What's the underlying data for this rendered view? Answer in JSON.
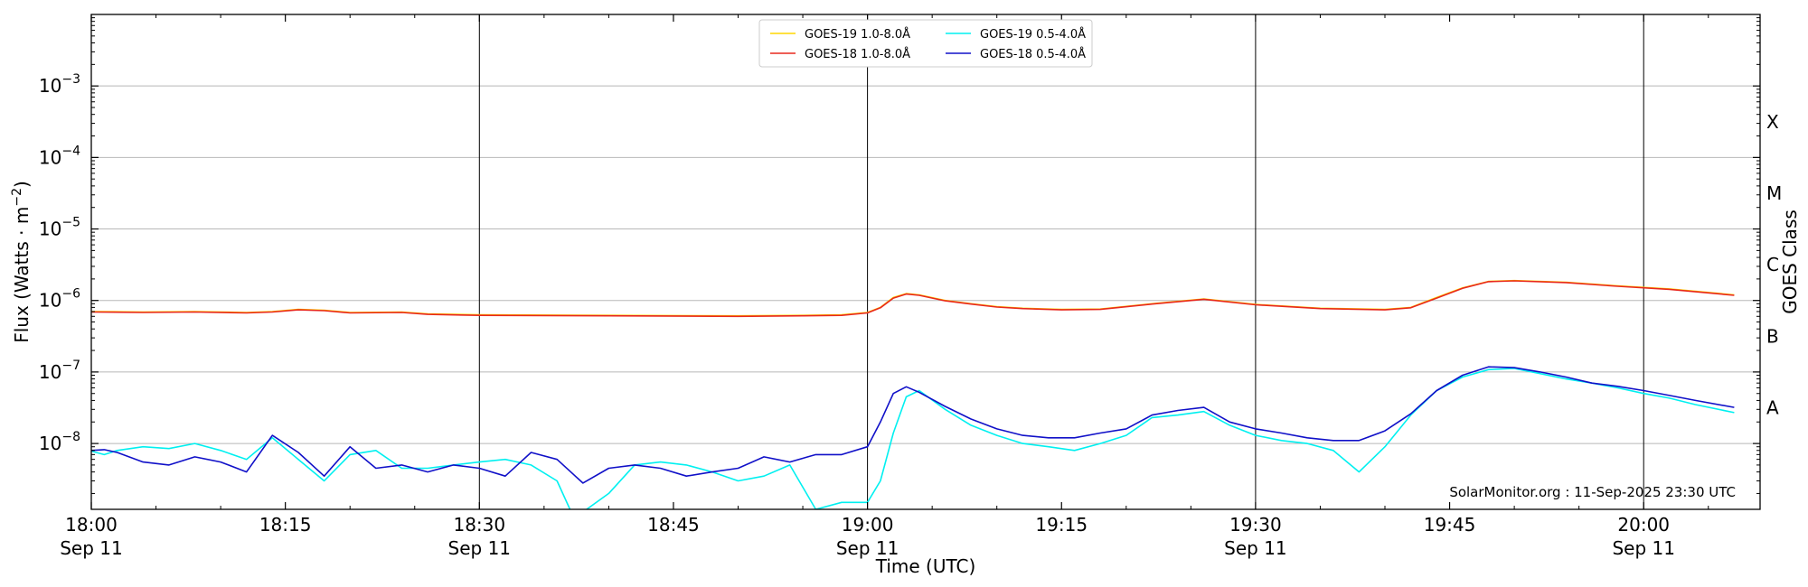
{
  "chart_data": {
    "type": "line",
    "xlabel": "Time (UTC)",
    "ylabel_text": "Flux (Watts · m",
    "ylabel_sup": "−2",
    "ylabel_close": ")",
    "right_label": "GOES Class",
    "ylim": [
      1.2e-09,
      0.01
    ],
    "xlim_minutes": [
      0,
      129
    ],
    "x_ticks": [
      {
        "minute": 0,
        "label": "18:00",
        "date": "Sep 11"
      },
      {
        "minute": 15,
        "label": "18:15",
        "date": ""
      },
      {
        "minute": 30,
        "label": "18:30",
        "date": "Sep 11"
      },
      {
        "minute": 45,
        "label": "18:45",
        "date": ""
      },
      {
        "minute": 60,
        "label": "19:00",
        "date": "Sep 11"
      },
      {
        "minute": 75,
        "label": "19:15",
        "date": ""
      },
      {
        "minute": 90,
        "label": "19:30",
        "date": "Sep 11"
      },
      {
        "minute": 105,
        "label": "19:45",
        "date": ""
      },
      {
        "minute": 120,
        "label": "20:00",
        "date": "Sep 11"
      }
    ],
    "vlines_minutes": [
      0,
      30,
      60,
      90,
      120
    ],
    "y_ticks": [
      {
        "value": 1e-08,
        "base": "10",
        "exp": "−8"
      },
      {
        "value": 1e-07,
        "base": "10",
        "exp": "−7"
      },
      {
        "value": 1e-06,
        "base": "10",
        "exp": "−6"
      },
      {
        "value": 1e-05,
        "base": "10",
        "exp": "−5"
      },
      {
        "value": 0.0001,
        "base": "10",
        "exp": "−4"
      },
      {
        "value": 0.001,
        "base": "10",
        "exp": "−3"
      }
    ],
    "goes_classes": [
      {
        "label": "A",
        "value": 3.16e-08
      },
      {
        "label": "B",
        "value": 3.16e-07
      },
      {
        "label": "C",
        "value": 3.16e-06
      },
      {
        "label": "M",
        "value": 3.16e-05
      },
      {
        "label": "X",
        "value": 0.000316
      }
    ],
    "annotation": "SolarMonitor.org : 11-Sep-2025 23:30 UTC",
    "legend": [
      {
        "label": "GOES-19 1.0-8.0Å",
        "color": "#ffd700"
      },
      {
        "label": "GOES-18 1.0-8.0Å",
        "color": "#e8281e"
      },
      {
        "label": "GOES-19 0.5-4.0Å",
        "color": "#00f0f0"
      },
      {
        "label": "GOES-18 0.5-4.0Å",
        "color": "#1010c8"
      }
    ],
    "series": [
      {
        "name": "GOES-19 1.0-8.0Å",
        "color": "#ffd700",
        "x": [
          -2,
          0,
          4,
          8,
          12,
          14,
          16,
          18,
          20,
          24,
          26,
          30,
          40,
          50,
          55,
          58,
          60,
          61,
          62,
          63,
          64,
          66,
          68,
          70,
          72,
          75,
          78,
          82,
          86,
          90,
          95,
          100,
          102,
          104,
          106,
          108,
          110,
          114,
          118,
          122,
          127
        ],
        "y": [
          7.1e-07,
          7e-07,
          6.9e-07,
          7e-07,
          6.8e-07,
          7e-07,
          7.5e-07,
          7.3e-07,
          6.8e-07,
          6.9e-07,
          6.5e-07,
          6.3e-07,
          6.2e-07,
          6.1e-07,
          6.2e-07,
          6.3e-07,
          6.8e-07,
          8e-07,
          1.1e-06,
          1.25e-06,
          1.2e-06,
          1e-06,
          9e-07,
          8.2e-07,
          7.8e-07,
          7.5e-07,
          7.6e-07,
          9e-07,
          1.05e-06,
          8.8e-07,
          7.8e-07,
          7.5e-07,
          8e-07,
          1.1e-06,
          1.5e-06,
          1.85e-06,
          1.9e-06,
          1.8e-06,
          1.6e-06,
          1.45e-06,
          1.2e-06
        ]
      },
      {
        "name": "GOES-18 1.0-8.0Å",
        "color": "#e8281e",
        "x": [
          -2,
          0,
          4,
          8,
          12,
          14,
          16,
          18,
          20,
          24,
          26,
          30,
          40,
          50,
          55,
          58,
          60,
          61,
          62,
          63,
          64,
          66,
          68,
          70,
          72,
          75,
          78,
          82,
          86,
          90,
          95,
          100,
          102,
          104,
          106,
          108,
          110,
          114,
          118,
          122,
          127
        ],
        "y": [
          7e-07,
          6.9e-07,
          6.8e-07,
          6.9e-07,
          6.7e-07,
          6.9e-07,
          7.4e-07,
          7.2e-07,
          6.7e-07,
          6.8e-07,
          6.4e-07,
          6.2e-07,
          6.1e-07,
          6e-07,
          6.1e-07,
          6.2e-07,
          6.7e-07,
          7.9e-07,
          1.08e-06,
          1.23e-06,
          1.18e-06,
          9.9e-07,
          8.9e-07,
          8.1e-07,
          7.7e-07,
          7.4e-07,
          7.5e-07,
          8.9e-07,
          1.04e-06,
          8.7e-07,
          7.7e-07,
          7.4e-07,
          7.9e-07,
          1.08e-06,
          1.48e-06,
          1.83e-06,
          1.88e-06,
          1.78e-06,
          1.58e-06,
          1.43e-06,
          1.18e-06
        ]
      },
      {
        "name": "GOES-19 0.5-4.0Å",
        "color": "#00f0f0",
        "x": [
          -2,
          0,
          1,
          2,
          4,
          6,
          8,
          10,
          12,
          14,
          16,
          18,
          20,
          22,
          24,
          26,
          28,
          30,
          32,
          34,
          36,
          37,
          38,
          40,
          42,
          44,
          46,
          48,
          50,
          52,
          54,
          56,
          58,
          60,
          61,
          62,
          63,
          64,
          66,
          68,
          70,
          72,
          74,
          76,
          78,
          80,
          82,
          84,
          86,
          88,
          90,
          92,
          94,
          96,
          98,
          100,
          102,
          104,
          106,
          108,
          110,
          112,
          114,
          116,
          118,
          120,
          122,
          124,
          127
        ],
        "y": [
          7.5e-09,
          7.8e-09,
          7e-09,
          8e-09,
          9e-09,
          8.5e-09,
          1e-08,
          8e-09,
          6e-09,
          1.2e-08,
          6e-09,
          3e-09,
          7e-09,
          8e-09,
          4.5e-09,
          4.5e-09,
          5e-09,
          5.5e-09,
          6e-09,
          5e-09,
          3e-09,
          1.2e-09,
          1.1e-09,
          2e-09,
          5e-09,
          5.5e-09,
          5e-09,
          4e-09,
          3e-09,
          3.5e-09,
          5e-09,
          1.2e-09,
          1.5e-09,
          1.5e-09,
          3e-09,
          1.4e-08,
          4.5e-08,
          5.5e-08,
          3e-08,
          1.8e-08,
          1.3e-08,
          1e-08,
          9e-09,
          8e-09,
          1e-08,
          1.3e-08,
          2.3e-08,
          2.5e-08,
          2.8e-08,
          1.8e-08,
          1.3e-08,
          1.1e-08,
          1e-08,
          8e-09,
          4e-09,
          9e-09,
          2.5e-08,
          5.5e-08,
          8.5e-08,
          1.08e-07,
          1.12e-07,
          9.5e-08,
          8e-08,
          7e-08,
          6e-08,
          5e-08,
          4.3e-08,
          3.5e-08,
          2.7e-08
        ]
      },
      {
        "name": "GOES-18 0.5-4.0Å",
        "color": "#1010c8",
        "x": [
          -2,
          0,
          1,
          2,
          4,
          6,
          8,
          10,
          12,
          14,
          16,
          18,
          20,
          22,
          24,
          26,
          28,
          30,
          32,
          34,
          36,
          38,
          40,
          42,
          44,
          46,
          48,
          50,
          52,
          54,
          56,
          58,
          60,
          61,
          62,
          63,
          64,
          66,
          68,
          70,
          72,
          74,
          76,
          78,
          80,
          82,
          84,
          86,
          88,
          90,
          92,
          94,
          96,
          98,
          100,
          102,
          104,
          106,
          108,
          110,
          112,
          114,
          116,
          118,
          120,
          122,
          124,
          127
        ],
        "y": [
          8.5e-09,
          8e-09,
          8.2e-09,
          7.5e-09,
          5.5e-09,
          5e-09,
          6.5e-09,
          5.5e-09,
          4e-09,
          1.3e-08,
          7.5e-09,
          3.5e-09,
          9e-09,
          4.5e-09,
          5e-09,
          4e-09,
          5e-09,
          4.5e-09,
          3.5e-09,
          7.5e-09,
          6e-09,
          2.8e-09,
          4.5e-09,
          5e-09,
          4.5e-09,
          3.5e-09,
          4e-09,
          4.5e-09,
          6.5e-09,
          5.5e-09,
          7e-09,
          7e-09,
          9e-09,
          2e-08,
          5e-08,
          6.2e-08,
          5.2e-08,
          3.3e-08,
          2.2e-08,
          1.6e-08,
          1.3e-08,
          1.2e-08,
          1.2e-08,
          1.4e-08,
          1.6e-08,
          2.5e-08,
          2.9e-08,
          3.2e-08,
          2e-08,
          1.6e-08,
          1.4e-08,
          1.2e-08,
          1.1e-08,
          1.1e-08,
          1.5e-08,
          2.6e-08,
          5.5e-08,
          9e-08,
          1.18e-07,
          1.15e-07,
          1e-07,
          8.5e-08,
          7e-08,
          6.3e-08,
          5.5e-08,
          4.7e-08,
          4e-08,
          3.2e-08
        ]
      }
    ]
  }
}
